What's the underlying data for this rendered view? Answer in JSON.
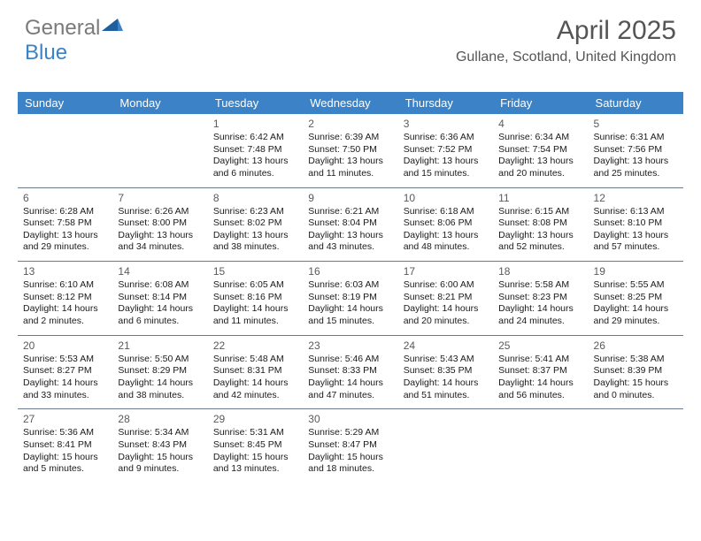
{
  "logo": {
    "word1": "General",
    "word2": "Blue"
  },
  "title": "April 2025",
  "location": "Gullane, Scotland, United Kingdom",
  "day_headers": [
    "Sunday",
    "Monday",
    "Tuesday",
    "Wednesday",
    "Thursday",
    "Friday",
    "Saturday"
  ],
  "colors": {
    "header_bg": "#3b82c7",
    "header_fg": "#ffffff",
    "logo_gray": "#7a7a7a",
    "logo_blue": "#3b82c7",
    "sep": "#6b7a8a",
    "text": "#1a1a1a",
    "muted": "#555555"
  },
  "weeks": [
    [
      null,
      null,
      {
        "n": "1",
        "sr": "6:42 AM",
        "ss": "7:48 PM",
        "dl": "13 hours and 6 minutes."
      },
      {
        "n": "2",
        "sr": "6:39 AM",
        "ss": "7:50 PM",
        "dl": "13 hours and 11 minutes."
      },
      {
        "n": "3",
        "sr": "6:36 AM",
        "ss": "7:52 PM",
        "dl": "13 hours and 15 minutes."
      },
      {
        "n": "4",
        "sr": "6:34 AM",
        "ss": "7:54 PM",
        "dl": "13 hours and 20 minutes."
      },
      {
        "n": "5",
        "sr": "6:31 AM",
        "ss": "7:56 PM",
        "dl": "13 hours and 25 minutes."
      }
    ],
    [
      {
        "n": "6",
        "sr": "6:28 AM",
        "ss": "7:58 PM",
        "dl": "13 hours and 29 minutes."
      },
      {
        "n": "7",
        "sr": "6:26 AM",
        "ss": "8:00 PM",
        "dl": "13 hours and 34 minutes."
      },
      {
        "n": "8",
        "sr": "6:23 AM",
        "ss": "8:02 PM",
        "dl": "13 hours and 38 minutes."
      },
      {
        "n": "9",
        "sr": "6:21 AM",
        "ss": "8:04 PM",
        "dl": "13 hours and 43 minutes."
      },
      {
        "n": "10",
        "sr": "6:18 AM",
        "ss": "8:06 PM",
        "dl": "13 hours and 48 minutes."
      },
      {
        "n": "11",
        "sr": "6:15 AM",
        "ss": "8:08 PM",
        "dl": "13 hours and 52 minutes."
      },
      {
        "n": "12",
        "sr": "6:13 AM",
        "ss": "8:10 PM",
        "dl": "13 hours and 57 minutes."
      }
    ],
    [
      {
        "n": "13",
        "sr": "6:10 AM",
        "ss": "8:12 PM",
        "dl": "14 hours and 2 minutes."
      },
      {
        "n": "14",
        "sr": "6:08 AM",
        "ss": "8:14 PM",
        "dl": "14 hours and 6 minutes."
      },
      {
        "n": "15",
        "sr": "6:05 AM",
        "ss": "8:16 PM",
        "dl": "14 hours and 11 minutes."
      },
      {
        "n": "16",
        "sr": "6:03 AM",
        "ss": "8:19 PM",
        "dl": "14 hours and 15 minutes."
      },
      {
        "n": "17",
        "sr": "6:00 AM",
        "ss": "8:21 PM",
        "dl": "14 hours and 20 minutes."
      },
      {
        "n": "18",
        "sr": "5:58 AM",
        "ss": "8:23 PM",
        "dl": "14 hours and 24 minutes."
      },
      {
        "n": "19",
        "sr": "5:55 AM",
        "ss": "8:25 PM",
        "dl": "14 hours and 29 minutes."
      }
    ],
    [
      {
        "n": "20",
        "sr": "5:53 AM",
        "ss": "8:27 PM",
        "dl": "14 hours and 33 minutes."
      },
      {
        "n": "21",
        "sr": "5:50 AM",
        "ss": "8:29 PM",
        "dl": "14 hours and 38 minutes."
      },
      {
        "n": "22",
        "sr": "5:48 AM",
        "ss": "8:31 PM",
        "dl": "14 hours and 42 minutes."
      },
      {
        "n": "23",
        "sr": "5:46 AM",
        "ss": "8:33 PM",
        "dl": "14 hours and 47 minutes."
      },
      {
        "n": "24",
        "sr": "5:43 AM",
        "ss": "8:35 PM",
        "dl": "14 hours and 51 minutes."
      },
      {
        "n": "25",
        "sr": "5:41 AM",
        "ss": "8:37 PM",
        "dl": "14 hours and 56 minutes."
      },
      {
        "n": "26",
        "sr": "5:38 AM",
        "ss": "8:39 PM",
        "dl": "15 hours and 0 minutes."
      }
    ],
    [
      {
        "n": "27",
        "sr": "5:36 AM",
        "ss": "8:41 PM",
        "dl": "15 hours and 5 minutes."
      },
      {
        "n": "28",
        "sr": "5:34 AM",
        "ss": "8:43 PM",
        "dl": "15 hours and 9 minutes."
      },
      {
        "n": "29",
        "sr": "5:31 AM",
        "ss": "8:45 PM",
        "dl": "15 hours and 13 minutes."
      },
      {
        "n": "30",
        "sr": "5:29 AM",
        "ss": "8:47 PM",
        "dl": "15 hours and 18 minutes."
      },
      null,
      null,
      null
    ]
  ],
  "labels": {
    "sunrise": "Sunrise:",
    "sunset": "Sunset:",
    "daylight": "Daylight:"
  }
}
